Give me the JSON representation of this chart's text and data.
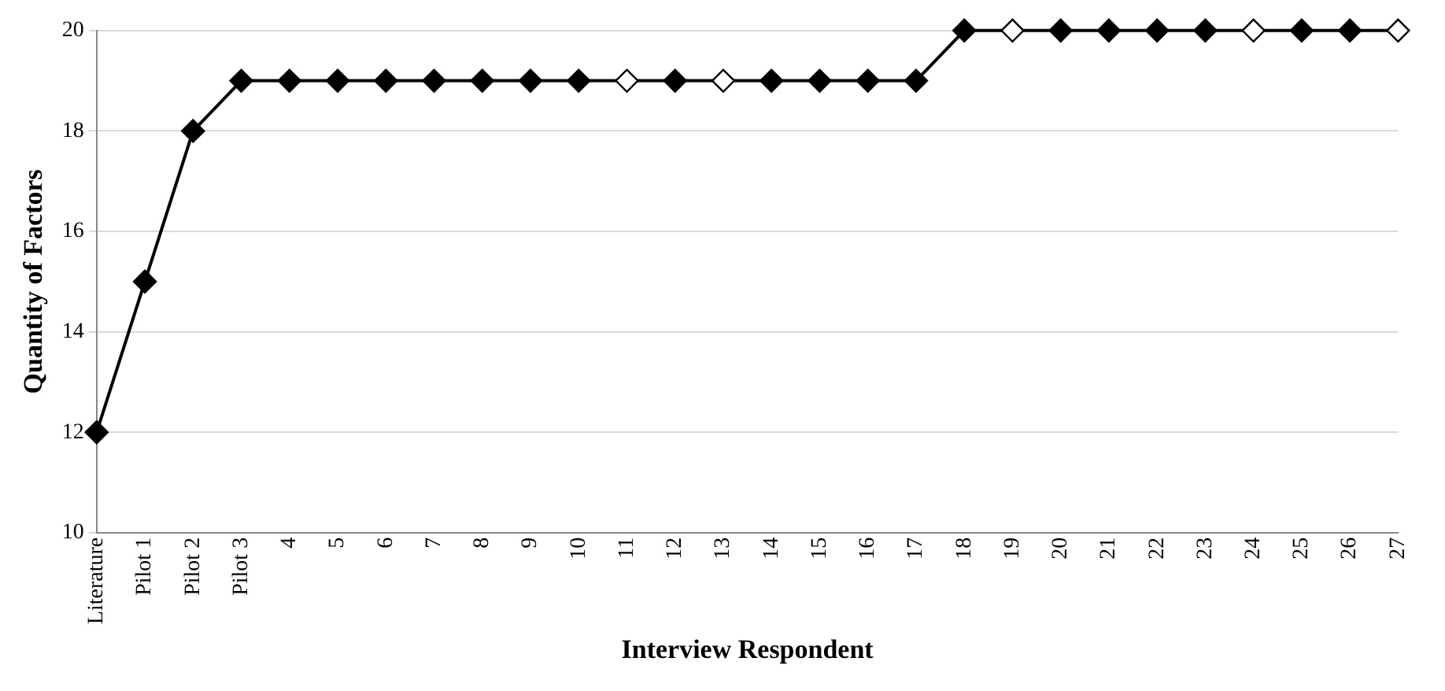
{
  "chart_data": {
    "type": "line",
    "xlabel": "Interview Respondent",
    "ylabel": "Quantity of Factors",
    "categories": [
      "Literature",
      "Pilot 1",
      "Pilot 2",
      "Pilot 3",
      "4",
      "5",
      "6",
      "7",
      "8",
      "9",
      "10",
      "11",
      "12",
      "13",
      "14",
      "15",
      "16",
      "17",
      "18",
      "19",
      "20",
      "21",
      "22",
      "23",
      "24",
      "25",
      "26",
      "27"
    ],
    "series": [
      {
        "color": "#000000",
        "values": [
          12,
          15,
          18,
          19,
          19,
          19,
          19,
          19,
          19,
          19,
          19,
          19,
          19,
          19,
          19,
          19,
          19,
          19,
          20,
          20,
          20,
          20,
          20,
          20,
          20,
          20,
          20,
          20
        ],
        "colors": [
          "#000000",
          "#000000",
          "#000000",
          "#000000",
          "#000000",
          "#000000",
          "#000000",
          "#000000",
          "#000000",
          "#000000",
          "#000000",
          "#ffffff",
          "#000000",
          "#ffffff",
          "#000000",
          "#000000",
          "#000000",
          "#000000",
          "#000000",
          "#ffffff",
          "#000000",
          "#000000",
          "#000000",
          "#000000",
          "#ffffff",
          "#000000",
          "#000000",
          "#ffffff"
        ]
      }
    ],
    "ylim": [
      10,
      20
    ],
    "yticks": [
      10,
      12,
      14,
      16,
      18,
      20
    ],
    "grid": "y",
    "legend": false,
    "marker": "diamond",
    "line_style": "solid"
  }
}
